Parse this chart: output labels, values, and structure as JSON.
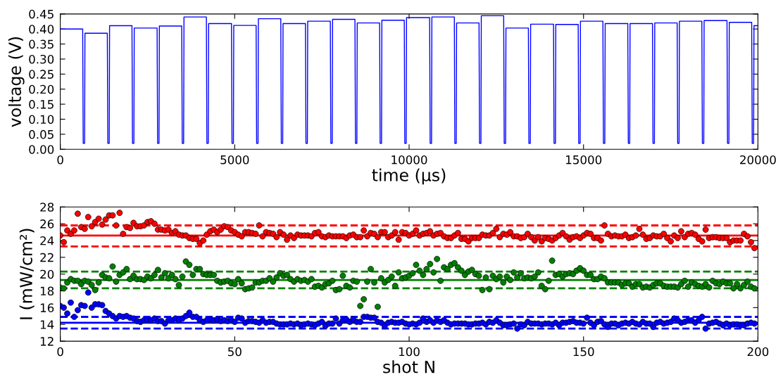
{
  "chart_data": [
    {
      "type": "line",
      "xlabel": "time (μs)",
      "ylabel": "voltage (V)",
      "xlim": [
        0,
        20000
      ],
      "xticks": [
        0,
        5000,
        10000,
        15000,
        20000
      ],
      "ylim": [
        0,
        0.45
      ],
      "yticks": [
        {
          "value": 0,
          "label": "0.00"
        },
        {
          "value": 0.05,
          "label": "0.05"
        },
        {
          "value": 0.1,
          "label": "0.10"
        },
        {
          "value": 0.15,
          "label": "0.15"
        },
        {
          "value": 0.2,
          "label": "0.20"
        },
        {
          "value": 0.25,
          "label": "0.25"
        },
        {
          "value": 0.3,
          "label": "0.30"
        },
        {
          "value": 0.35,
          "label": "0.35"
        },
        {
          "value": 0.4,
          "label": "0.40"
        },
        {
          "value": 0.45,
          "label": "0.45"
        }
      ],
      "line_style": "solid",
      "marker": "none",
      "series": [
        {
          "color": "#0000ff",
          "x": [
            0,
            642,
            657,
            697,
            707,
            1348,
            1363,
            1403,
            1413,
            2055,
            2070,
            2110,
            2120,
            2775,
            2790,
            2830,
            2840,
            3481,
            3496,
            3536,
            3546,
            4188,
            4203,
            4243,
            4253,
            4908,
            4923,
            4963,
            4973,
            5614,
            5629,
            5669,
            5679,
            6321,
            6336,
            6376,
            6386,
            7028,
            7043,
            7083,
            7093,
            7741,
            7756,
            7796,
            7806,
            8447,
            8462,
            8502,
            8512,
            9154,
            9169,
            9209,
            9219,
            9861,
            9876,
            9916,
            9926,
            10588,
            10603,
            10643,
            10653,
            11296,
            11311,
            11351,
            11361,
            12004,
            12019,
            12059,
            12069,
            12711,
            12726,
            12766,
            12776,
            13419,
            13434,
            13474,
            13484,
            14140,
            14155,
            14195,
            14205,
            14847,
            14862,
            14902,
            14912,
            15555,
            15570,
            15610,
            15620,
            16269,
            16284,
            16324,
            16334,
            16977,
            16992,
            17032,
            17042,
            17684,
            17699,
            17739,
            17749,
            18392,
            18407,
            18447,
            18457,
            19113,
            19128,
            19168,
            19178,
            19821,
            19836,
            19876,
            19886,
            20000
          ],
          "values": [
            0.4,
            0.4,
            0.02,
            0.02,
            0.386,
            0.386,
            0.02,
            0.02,
            0.411,
            0.411,
            0.02,
            0.02,
            0.403,
            0.403,
            0.02,
            0.02,
            0.41,
            0.41,
            0.02,
            0.02,
            0.44,
            0.44,
            0.02,
            0.02,
            0.418,
            0.418,
            0.02,
            0.02,
            0.412,
            0.412,
            0.02,
            0.02,
            0.434,
            0.434,
            0.02,
            0.02,
            0.418,
            0.418,
            0.02,
            0.02,
            0.426,
            0.426,
            0.02,
            0.02,
            0.432,
            0.432,
            0.02,
            0.02,
            0.42,
            0.42,
            0.02,
            0.02,
            0.429,
            0.429,
            0.02,
            0.02,
            0.438,
            0.438,
            0.02,
            0.02,
            0.44,
            0.44,
            0.02,
            0.02,
            0.42,
            0.42,
            0.02,
            0.02,
            0.444,
            0.444,
            0.02,
            0.02,
            0.403,
            0.403,
            0.02,
            0.02,
            0.416,
            0.416,
            0.02,
            0.02,
            0.415,
            0.415,
            0.02,
            0.02,
            0.426,
            0.426,
            0.02,
            0.02,
            0.418,
            0.418,
            0.02,
            0.02,
            0.418,
            0.418,
            0.02,
            0.02,
            0.42,
            0.42,
            0.02,
            0.02,
            0.426,
            0.426,
            0.02,
            0.02,
            0.428,
            0.428,
            0.02,
            0.02,
            0.422,
            0.422,
            0.02,
            0.02,
            0.411,
            0.411
          ]
        }
      ]
    },
    {
      "type": "scatter",
      "xlabel": "shot N",
      "ylabel": "I (mW/cm²)",
      "xlim": [
        0,
        200
      ],
      "xticks": [
        0,
        50,
        100,
        150,
        200
      ],
      "ylim": [
        12,
        28
      ],
      "yticks": [
        12,
        14,
        16,
        18,
        20,
        22,
        24,
        26,
        28
      ],
      "marker": "circle",
      "x": [
        0,
        1,
        2,
        3,
        4,
        5,
        6,
        7,
        8,
        9,
        10,
        11,
        12,
        13,
        14,
        15,
        16,
        17,
        18,
        19,
        20,
        21,
        22,
        23,
        24,
        25,
        26,
        27,
        28,
        29,
        30,
        31,
        32,
        33,
        34,
        35,
        36,
        37,
        38,
        39,
        40,
        41,
        42,
        43,
        44,
        45,
        46,
        47,
        48,
        49,
        50,
        51,
        52,
        53,
        54,
        55,
        56,
        57,
        58,
        59,
        60,
        61,
        62,
        63,
        64,
        65,
        66,
        67,
        68,
        69,
        70,
        71,
        72,
        73,
        74,
        75,
        76,
        77,
        78,
        79,
        80,
        81,
        82,
        83,
        84,
        85,
        86,
        87,
        88,
        89,
        90,
        91,
        92,
        93,
        94,
        95,
        96,
        97,
        98,
        99,
        100,
        101,
        102,
        103,
        104,
        105,
        106,
        107,
        108,
        109,
        110,
        111,
        112,
        113,
        114,
        115,
        116,
        117,
        118,
        119,
        120,
        121,
        122,
        123,
        124,
        125,
        126,
        127,
        128,
        129,
        130,
        131,
        132,
        133,
        134,
        135,
        136,
        137,
        138,
        139,
        140,
        141,
        142,
        143,
        144,
        145,
        146,
        147,
        148,
        149,
        150,
        151,
        152,
        153,
        154,
        155,
        156,
        157,
        158,
        159,
        160,
        161,
        162,
        163,
        164,
        165,
        166,
        167,
        168,
        169,
        170,
        171,
        172,
        173,
        174,
        175,
        176,
        177,
        178,
        179,
        180,
        181,
        182,
        183,
        184,
        185,
        186,
        187,
        188,
        189,
        190,
        191,
        192,
        193,
        194,
        195,
        196,
        197,
        198,
        199
      ],
      "series": [
        {
          "color": "#ff0000",
          "values": [
            24.6,
            23.8,
            25.2,
            24.8,
            25.2,
            27.2,
            25.6,
            25.4,
            26.8,
            25.7,
            26.2,
            26.6,
            25.9,
            26.5,
            27.0,
            27.0,
            25.8,
            27.3,
            24.8,
            25.6,
            25.5,
            26.1,
            25.7,
            25.7,
            25.8,
            26.2,
            26.3,
            26.0,
            25.3,
            25.3,
            25.2,
            25.3,
            24.9,
            25.1,
            24.7,
            24.6,
            24.6,
            24.3,
            24.2,
            24.2,
            23.7,
            24.0,
            24.7,
            25.1,
            25.3,
            25.0,
            25.3,
            25.7,
            25.6,
            25.2,
            25.0,
            24.7,
            24.5,
            25.0,
            25.0,
            24.9,
            24.8,
            25.8,
            24.5,
            25.0,
            24.9,
            24.8,
            24.4,
            25.0,
            24.7,
            24.1,
            24.6,
            24.3,
            24.7,
            24.6,
            24.6,
            24.6,
            24.5,
            24.9,
            25.0,
            24.5,
            24.4,
            24.6,
            24.5,
            24.5,
            24.5,
            24.5,
            24.3,
            24.6,
            24.7,
            24.4,
            24.4,
            25.2,
            24.5,
            24.9,
            24.8,
            24.4,
            25.0,
            25.0,
            24.4,
            24.6,
            25.0,
            24.1,
            25.0,
            24.9,
            24.6,
            24.8,
            25.2,
            24.6,
            24.8,
            24.9,
            25.1,
            24.6,
            24.8,
            24.9,
            24.5,
            24.3,
            24.3,
            24.6,
            24.9,
            24.2,
            24.2,
            23.9,
            24.3,
            24.3,
            24.3,
            24.7,
            24.6,
            24.6,
            24.9,
            25.4,
            24.4,
            24.8,
            24.7,
            25.0,
            24.5,
            24.5,
            24.3,
            24.4,
            24.8,
            24.4,
            24.0,
            24.4,
            23.9,
            24.3,
            24.2,
            24.0,
            24.3,
            24.6,
            24.9,
            24.5,
            24.1,
            24.4,
            24.5,
            24.3,
            24.6,
            24.9,
            24.8,
            24.3,
            24.3,
            24.0,
            25.8,
            24.8,
            24.5,
            24.6,
            24.5,
            24.5,
            24.7,
            24.3,
            24.4,
            24.6,
            25.4,
            24.7,
            24.2,
            24.3,
            24.6,
            24.5,
            24.5,
            24.8,
            24.3,
            23.9,
            24.6,
            24.3,
            25.1,
            24.4,
            24.8,
            24.9,
            24.7,
            24.2,
            23.9,
            25.3,
            24.3,
            24.4,
            24.4,
            24.3,
            24.3,
            24.3,
            23.8,
            24.0,
            24.0,
            24.0,
            24.8,
            24.5,
            23.8,
            23.1
          ]
        },
        {
          "color": "#008000",
          "values": [
            18.4,
            18.3,
            19.0,
            19.4,
            19.2,
            19.2,
            18.8,
            19.2,
            19.1,
            18.7,
            18.1,
            19.0,
            19.9,
            19.6,
            19.5,
            20.9,
            19.1,
            19.9,
            20.2,
            20.6,
            19.4,
            19.8,
            19.4,
            19.4,
            19.3,
            19.7,
            19.5,
            19.9,
            20.5,
            19.6,
            20.1,
            19.5,
            19.9,
            19.4,
            18.7,
            19.7,
            21.5,
            21.1,
            19.9,
            20.6,
            20.6,
            20.0,
            19.9,
            19.9,
            19.9,
            19.2,
            19.0,
            19.1,
            19.2,
            18.9,
            18.8,
            19.4,
            18.9,
            18.2,
            18.3,
            18.4,
            19.0,
            19.0,
            19.2,
            19.2,
            19.5,
            19.1,
            19.6,
            20.1,
            19.8,
            19.9,
            19.4,
            19.1,
            19.4,
            19.2,
            19.3,
            19.1,
            19.4,
            18.5,
            18.6,
            18.4,
            18.8,
            18.9,
            19.2,
            18.1,
            18.2,
            19.8,
            18.6,
            18.4,
            19.2,
            19.1,
            16.2,
            17.0,
            19.1,
            20.6,
            19.0,
            16.1,
            19.5,
            19.0,
            19.3,
            19.7,
            18.6,
            20.2,
            19.5,
            19.6,
            19.8,
            20.1,
            21.1,
            20.4,
            19.9,
            20.6,
            21.2,
            20.2,
            21.8,
            19.2,
            20.8,
            20.6,
            21.1,
            21.3,
            20.8,
            20.4,
            19.9,
            20.3,
            20.5,
            20.0,
            19.8,
            18.1,
            19.6,
            18.2,
            19.8,
            19.4,
            19.7,
            19.0,
            19.7,
            19.3,
            20.2,
            19.6,
            20.1,
            19.5,
            19.6,
            19.5,
            19.7,
            20.2,
            18.6,
            18.2,
            19.2,
            21.6,
            19.9,
            20.0,
            19.7,
            20.0,
            20.1,
            20.0,
            20.4,
            20.7,
            20.4,
            19.9,
            19.9,
            19.4,
            19.4,
            19.7,
            19.5,
            19.0,
            19.0,
            19.0,
            19.0,
            18.7,
            18.9,
            18.9,
            18.5,
            18.8,
            18.8,
            18.4,
            18.5,
            18.4,
            18.7,
            18.9,
            18.9,
            18.6,
            18.5,
            18.5,
            18.5,
            18.4,
            18.8,
            19.2,
            18.5,
            19.0,
            18.8,
            18.6,
            18.5,
            18.8,
            18.4,
            19.2,
            18.9,
            18.8,
            19.1,
            18.9,
            18.9,
            18.3,
            18.8,
            18.3,
            18.7,
            19.1,
            18.5,
            18.3
          ]
        },
        {
          "color": "#0000ff",
          "values": [
            16.2,
            16.0,
            15.3,
            16.6,
            14.9,
            15.7,
            16.3,
            16.2,
            17.8,
            16.0,
            16.4,
            16.4,
            16.3,
            15.6,
            15.3,
            15.0,
            14.7,
            15.0,
            14.9,
            15.0,
            14.8,
            14.7,
            14.4,
            14.3,
            14.5,
            14.5,
            14.5,
            14.7,
            14.4,
            14.4,
            14.1,
            14.5,
            14.5,
            14.7,
            14.5,
            14.7,
            15.0,
            15.4,
            14.9,
            14.9,
            14.5,
            14.3,
            14.5,
            14.6,
            14.5,
            14.6,
            14.4,
            14.5,
            14.4,
            14.5,
            14.3,
            14.8,
            14.7,
            14.2,
            14.4,
            14.4,
            14.3,
            14.2,
            14.5,
            14.2,
            14.3,
            14.3,
            14.1,
            14.0,
            14.0,
            14.0,
            14.1,
            14.0,
            14.1,
            13.9,
            14.0,
            14.1,
            14.0,
            13.9,
            14.1,
            14.3,
            13.8,
            14.1,
            14.1,
            14.7,
            14.1,
            14.5,
            14.6,
            14.3,
            14.6,
            14.3,
            14.3,
            14.9,
            14.9,
            14.8,
            14.8,
            14.3,
            14.2,
            13.8,
            14.2,
            14.3,
            14.2,
            14.2,
            14.3,
            14.1,
            14.0,
            14.1,
            14.0,
            14.2,
            14.7,
            14.3,
            14.5,
            14.2,
            14.5,
            14.3,
            14.5,
            14.2,
            14.0,
            14.1,
            14.1,
            14.1,
            14.1,
            14.0,
            14.0,
            14.1,
            14.1,
            14.2,
            14.0,
            14.3,
            14.2,
            14.5,
            14.2,
            13.9,
            13.9,
            14.0,
            14.1,
            13.5,
            14.0,
            13.9,
            14.3,
            14.1,
            14.1,
            14.1,
            14.0,
            14.1,
            14.1,
            14.0,
            14.2,
            13.9,
            14.2,
            14.2,
            14.3,
            14.4,
            14.2,
            14.2,
            14.1,
            14.8,
            14.2,
            13.9,
            14.3,
            14.4,
            14.0,
            13.7,
            14.1,
            14.1,
            13.9,
            14.1,
            14.2,
            14.1,
            14.3,
            14.1,
            14.0,
            14.3,
            14.1,
            14.1,
            13.7,
            14.2,
            14.3,
            14.1,
            14.2,
            14.3,
            14.7,
            14.5,
            14.2,
            14.3,
            14.5,
            14.5,
            14.2,
            14.5,
            14.9,
            13.5,
            14.1,
            14.2,
            14.3,
            14.1,
            13.9,
            14.1,
            13.9,
            14.0,
            14.0,
            13.9,
            13.9,
            14.1,
            14.2,
            14.1
          ]
        }
      ],
      "ref_lines": [
        {
          "axis": "y",
          "value": 24.6,
          "color": "#ff0000",
          "line_style": "solid"
        },
        {
          "axis": "y",
          "value": 25.8,
          "color": "#ff0000",
          "line_style": "dashed"
        },
        {
          "axis": "y",
          "value": 23.3,
          "color": "#ff0000",
          "line_style": "dashed"
        },
        {
          "axis": "y",
          "value": 19.3,
          "color": "#008000",
          "line_style": "solid"
        },
        {
          "axis": "y",
          "value": 20.3,
          "color": "#008000",
          "line_style": "dashed"
        },
        {
          "axis": "y",
          "value": 18.3,
          "color": "#008000",
          "line_style": "dashed"
        },
        {
          "axis": "y",
          "value": 14.2,
          "color": "#0000ff",
          "line_style": "solid"
        },
        {
          "axis": "y",
          "value": 14.9,
          "color": "#0000ff",
          "line_style": "dashed"
        },
        {
          "axis": "y",
          "value": 13.5,
          "color": "#0000ff",
          "line_style": "dashed"
        }
      ]
    }
  ]
}
